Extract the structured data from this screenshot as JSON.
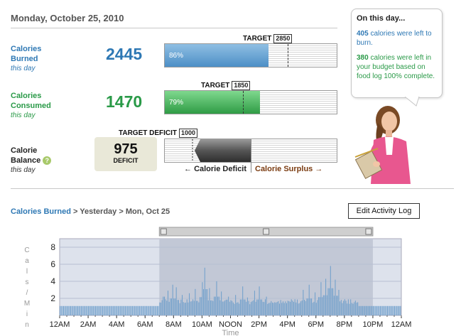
{
  "header": {
    "date": "Monday, October 25, 2010"
  },
  "metrics": {
    "burned": {
      "label_line1": "Calories",
      "label_line2": "Burned",
      "sub": "this day",
      "value": "2445",
      "target_label": "TARGET",
      "target_value": "2850",
      "percent_label": "86%",
      "fill_fraction": 0.86,
      "target_fraction": 0.715,
      "color": "#2e78b4"
    },
    "consumed": {
      "label_line1": "Calories",
      "label_line2": "Consumed",
      "sub": "this day",
      "value": "1470",
      "target_label": "TARGET",
      "target_value": "1850",
      "percent_label": "79%",
      "fill_fraction": 0.79,
      "target_fraction": 0.455,
      "color": "#2a9a48"
    },
    "balance": {
      "label_line1": "Calorie",
      "label_line2": "Balance",
      "sub": "this day",
      "help_icon": "question-icon",
      "value": "975",
      "value_word": "DEFICIT",
      "target_label": "TARGET DEFICIT",
      "target_value": "1000",
      "deficit_legend": "Calorie Deficit",
      "surplus_legend": "Calorie Surplus",
      "arrow_left_icon": "arrow-left-icon",
      "arrow_right_icon": "arrow-right-icon"
    }
  },
  "bubble": {
    "title": "On this day...",
    "p1_num": "405",
    "p1_text": " calories were left to burn.",
    "p2_num": "380",
    "p2_text": " calories were left in your budget based on food log 100% complete."
  },
  "section2": {
    "breadcrumb_link": "Calories Burned",
    "breadcrumb_rest": " > Yesterday > Mon, Oct 25",
    "edit_button": "Edit Activity Log"
  },
  "chart_data": {
    "type": "bar",
    "ylabel": "Cals/Min",
    "xlabel": "Time",
    "ylim": [
      0,
      9
    ],
    "yticks": [
      "2",
      "4",
      "6",
      "8"
    ],
    "xticks": [
      "12AM",
      "2AM",
      "4AM",
      "6AM",
      "8AM",
      "10AM",
      "NOON",
      "2PM",
      "4PM",
      "6PM",
      "8PM",
      "10PM",
      "12AM"
    ],
    "selection_start_hour": 7,
    "selection_end_hour": 22,
    "baseline": 1.1,
    "peaks": [
      {
        "hour": 7.3,
        "value": 2.2
      },
      {
        "hour": 7.6,
        "value": 2.9
      },
      {
        "hour": 7.9,
        "value": 3.6
      },
      {
        "hour": 8.2,
        "value": 3.3
      },
      {
        "hour": 8.6,
        "value": 2.4
      },
      {
        "hour": 9.1,
        "value": 2.6
      },
      {
        "hour": 9.5,
        "value": 3.1
      },
      {
        "hour": 10.0,
        "value": 3.9
      },
      {
        "hour": 10.2,
        "value": 5.6
      },
      {
        "hour": 10.5,
        "value": 3.2
      },
      {
        "hour": 11.0,
        "value": 4.0
      },
      {
        "hour": 11.3,
        "value": 2.8
      },
      {
        "hour": 11.8,
        "value": 2.2
      },
      {
        "hour": 12.3,
        "value": 2.4
      },
      {
        "hour": 12.8,
        "value": 3.4
      },
      {
        "hour": 13.2,
        "value": 2.1
      },
      {
        "hour": 13.7,
        "value": 2.9
      },
      {
        "hour": 14.0,
        "value": 3.4
      },
      {
        "hour": 14.5,
        "value": 2.2
      },
      {
        "hour": 15.5,
        "value": 1.8
      },
      {
        "hour": 16.5,
        "value": 1.9
      },
      {
        "hour": 17.1,
        "value": 3.0
      },
      {
        "hour": 17.5,
        "value": 3.6
      },
      {
        "hour": 17.9,
        "value": 2.7
      },
      {
        "hour": 18.3,
        "value": 3.9
      },
      {
        "hour": 18.7,
        "value": 4.3
      },
      {
        "hour": 19.0,
        "value": 5.8
      },
      {
        "hour": 19.3,
        "value": 4.2
      },
      {
        "hour": 19.6,
        "value": 3.0
      },
      {
        "hour": 20.0,
        "value": 1.9
      },
      {
        "hour": 21.0,
        "value": 1.5
      }
    ]
  },
  "colors": {
    "blue_fill": "#4d8fc6",
    "green_fill": "#2f9c45",
    "chart_bg": "#dde2ec",
    "chart_selected": "#c2c8d6",
    "chart_bar": "#6d9ecb"
  }
}
